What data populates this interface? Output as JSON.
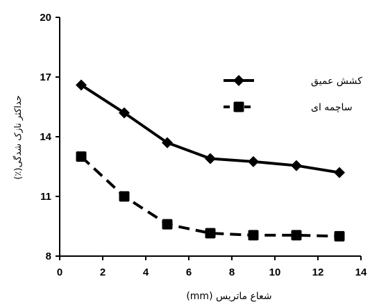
{
  "chart_data": {
    "type": "line",
    "xlabel": "شعاع ماتریس (mm)",
    "ylabel": "حداکثر نازک شدگی(٪)",
    "xlim": [
      0,
      14
    ],
    "ylim": [
      8,
      20
    ],
    "xticks": [
      0,
      2,
      4,
      6,
      8,
      10,
      12,
      14
    ],
    "yticks": [
      8,
      11,
      14,
      17,
      20
    ],
    "grid": false,
    "legend_position": "top-right",
    "series": [
      {
        "name": "کشش عمیق",
        "marker": "diamond",
        "line_style": "solid",
        "color": "#000000",
        "x": [
          1,
          3,
          5,
          7,
          9,
          11,
          13
        ],
        "y": [
          16.6,
          15.2,
          13.7,
          12.9,
          12.75,
          12.55,
          12.2
        ]
      },
      {
        "name": "ساچمه ای",
        "marker": "square",
        "line_style": "dashed",
        "color": "#000000",
        "x": [
          1,
          3,
          5,
          7,
          9,
          11,
          13
        ],
        "y": [
          13.0,
          11.0,
          9.6,
          9.15,
          9.05,
          9.05,
          9.0
        ]
      }
    ]
  }
}
